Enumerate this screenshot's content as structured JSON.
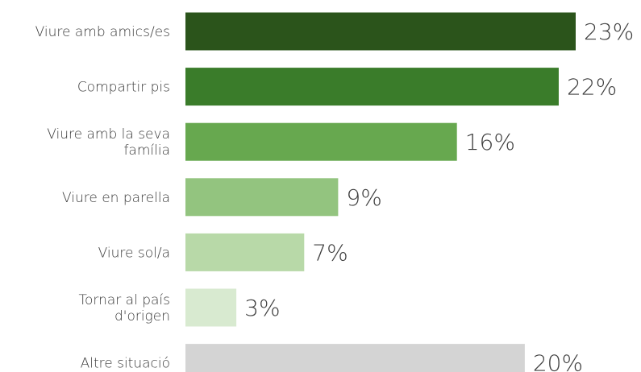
{
  "chart_data": {
    "type": "bar",
    "orientation": "horizontal",
    "title": "",
    "xlabel": "",
    "ylabel": "",
    "xlim": [
      0,
      23
    ],
    "grid": false,
    "legend": "none",
    "categories": [
      [
        "Viure amb amics/es"
      ],
      [
        "Compartir pis"
      ],
      [
        "Viure amb la seva",
        "família"
      ],
      [
        "Viure en parella"
      ],
      [
        "Viure sol/a"
      ],
      [
        "Tornar al país",
        "d'origen"
      ],
      [
        "Altre situació"
      ]
    ],
    "values": [
      23,
      22,
      16,
      9,
      7,
      3,
      20
    ],
    "value_labels": [
      "23%",
      "22%",
      "16%",
      "9%",
      "7%",
      "3%",
      "20%"
    ],
    "colors": [
      "#2b541b",
      "#3a7c2a",
      "#67a84f",
      "#93c47f",
      "#b8d9a8",
      "#d8ead0",
      "#d4d4d4"
    ]
  }
}
